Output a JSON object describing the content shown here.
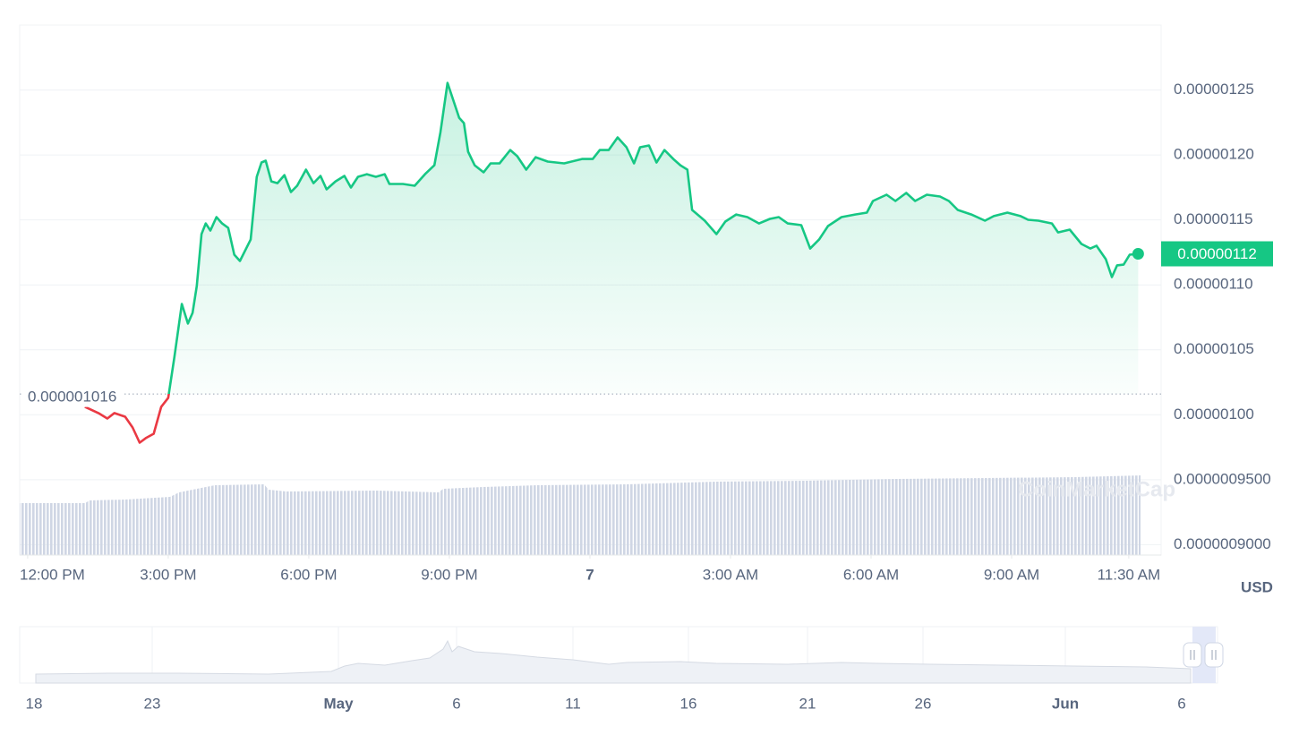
{
  "chart_data": [
    {
      "type": "line",
      "color": "#16c784",
      "negative_color": "#ea3943",
      "currency": "USD",
      "watermark": "CoinMarketCap",
      "baseline": {
        "value": 1.016e-06,
        "label": "0.000001016"
      },
      "price_tag": "0.00000112",
      "grid": true,
      "xlim": [
        -0.17,
        24.19
      ],
      "xticks": [
        {
          "value": 0,
          "label": "12:00 PM"
        },
        {
          "value": 3,
          "label": "3:00 PM"
        },
        {
          "value": 6,
          "label": "6:00 PM"
        },
        {
          "value": 9,
          "label": "9:00 PM"
        },
        {
          "value": 12,
          "label": "7"
        },
        {
          "value": 15,
          "label": "3:00 AM"
        },
        {
          "value": 18,
          "label": "6:00 AM"
        },
        {
          "value": 21,
          "label": "9:00 AM"
        },
        {
          "value": 23.5,
          "label": "11:30 AM"
        }
      ],
      "ylim": [
        8.92e-07,
        1.3e-06
      ],
      "yticks": [
        {
          "value": 9e-07,
          "label": "0.0000009000"
        },
        {
          "value": 9.5e-07,
          "label": "0.0000009500"
        },
        {
          "value": 1e-06,
          "label": "0.00000100"
        },
        {
          "value": 1.05e-06,
          "label": "0.00000105"
        },
        {
          "value": 1.1e-06,
          "label": "0.00000110"
        },
        {
          "value": 1.15e-06,
          "label": "0.00000115"
        },
        {
          "value": 1.2e-06,
          "label": "0.00000120"
        },
        {
          "value": 1.25e-06,
          "label": "0.00000125"
        }
      ],
      "x": [
        1.22,
        1.51,
        1.7,
        1.85,
        2.08,
        2.24,
        2.39,
        2.52,
        2.69,
        2.85,
        3.0,
        3.13,
        3.29,
        3.42,
        3.52,
        3.61,
        3.71,
        3.8,
        3.9,
        4.03,
        4.15,
        4.28,
        4.41,
        4.53,
        4.76,
        4.89,
        4.99,
        5.08,
        5.2,
        5.33,
        5.48,
        5.62,
        5.75,
        5.94,
        6.1,
        6.25,
        6.38,
        6.57,
        6.76,
        6.9,
        7.05,
        7.24,
        7.43,
        7.62,
        7.72,
        8.01,
        8.26,
        8.48,
        8.68,
        8.81,
        8.96,
        9.1,
        9.21,
        9.31,
        9.4,
        9.54,
        9.73,
        9.88,
        10.07,
        10.3,
        10.45,
        10.64,
        10.84,
        11.1,
        11.45,
        11.83,
        12.06,
        12.21,
        12.4,
        12.59,
        12.78,
        12.94,
        13.07,
        13.26,
        13.42,
        13.59,
        13.78,
        13.93,
        14.08,
        14.18,
        14.45,
        14.7,
        14.89,
        15.12,
        15.36,
        15.61,
        15.84,
        16.03,
        16.22,
        16.51,
        16.7,
        16.89,
        17.08,
        17.37,
        17.66,
        17.91,
        18.04,
        18.33,
        18.52,
        18.75,
        18.94,
        19.19,
        19.47,
        19.66,
        19.85,
        20.14,
        20.43,
        20.62,
        20.91,
        21.19,
        21.35,
        21.57,
        21.86,
        21.99,
        22.24,
        22.49,
        22.68,
        22.81,
        23.01,
        23.14,
        23.25,
        23.39,
        23.52,
        23.7
      ],
      "values": [
        1.0061e-06,
        1.0013e-06,
        9.971e-07,
        1.0013e-06,
        9.985e-07,
        9.902e-07,
        9.785e-07,
        9.82e-07,
        9.854e-07,
        1.0061e-06,
        1.013e-06,
        1.044e-06,
        1.0853e-06,
        1.0702e-06,
        1.0784e-06,
        1.0991e-06,
        1.1391e-06,
        1.1473e-06,
        1.1418e-06,
        1.1522e-06,
        1.1473e-06,
        1.1439e-06,
        1.1232e-06,
        1.1184e-06,
        1.1349e-06,
        1.1832e-06,
        1.1942e-06,
        1.1956e-06,
        1.1797e-06,
        1.1783e-06,
        1.1845e-06,
        1.1715e-06,
        1.1763e-06,
        1.1887e-06,
        1.1783e-06,
        1.1839e-06,
        1.1735e-06,
        1.1797e-06,
        1.1839e-06,
        1.1749e-06,
        1.1832e-06,
        1.1852e-06,
        1.1832e-06,
        1.1852e-06,
        1.1777e-06,
        1.1777e-06,
        1.1763e-06,
        1.1852e-06,
        1.1921e-06,
        1.2176e-06,
        1.2555e-06,
        1.2404e-06,
        1.2286e-06,
        1.2245e-06,
        1.2025e-06,
        1.1921e-06,
        1.1866e-06,
        1.1935e-06,
        1.1935e-06,
        1.2038e-06,
        1.199e-06,
        1.1887e-06,
        1.1983e-06,
        1.1949e-06,
        1.1935e-06,
        1.1969e-06,
        1.1969e-06,
        1.2038e-06,
        1.2038e-06,
        1.2135e-06,
        1.2059e-06,
        1.1935e-06,
        1.2059e-06,
        1.2073e-06,
        1.1942e-06,
        1.2038e-06,
        1.1969e-06,
        1.1921e-06,
        1.1887e-06,
        1.1577e-06,
        1.1494e-06,
        1.1391e-06,
        1.1487e-06,
        1.1542e-06,
        1.1522e-06,
        1.1473e-06,
        1.1508e-06,
        1.1522e-06,
        1.1473e-06,
        1.146e-06,
        1.128e-06,
        1.1349e-06,
        1.1453e-06,
        1.1522e-06,
        1.1542e-06,
        1.1556e-06,
        1.1646e-06,
        1.1694e-06,
        1.1646e-06,
        1.1708e-06,
        1.1646e-06,
        1.1694e-06,
        1.168e-06,
        1.1646e-06,
        1.1577e-06,
        1.1542e-06,
        1.1494e-06,
        1.1529e-06,
        1.1556e-06,
        1.1529e-06,
        1.1501e-06,
        1.1494e-06,
        1.1473e-06,
        1.1404e-06,
        1.1425e-06,
        1.1315e-06,
        1.128e-06,
        1.1301e-06,
        1.1198e-06,
        1.106e-06,
        1.115e-06,
        1.1156e-06,
        1.1232e-06,
        1.1239e-06
      ]
    },
    {
      "type": "navigator",
      "categories": [
        "18",
        "23",
        "May",
        "6",
        "11",
        "16",
        "21",
        "26",
        "Jun",
        "6"
      ]
    }
  ]
}
